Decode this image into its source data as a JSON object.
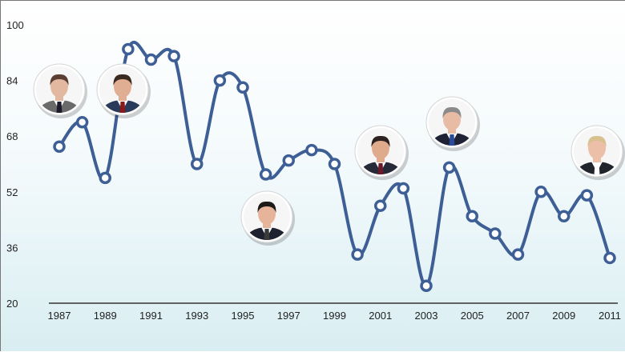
{
  "chart_data": {
    "type": "line",
    "title": "",
    "xlabel": "",
    "ylabel": "",
    "x": [
      1987,
      1988,
      1989,
      1990,
      1991,
      1992,
      1993,
      1994,
      1995,
      1996,
      1997,
      1998,
      1999,
      2000,
      2001,
      2002,
      2003,
      2004,
      2005,
      2006,
      2007,
      2008,
      2009,
      2010,
      2011
    ],
    "series": [
      {
        "values": [
          65,
          72,
          56,
          93,
          90,
          91,
          60,
          84,
          82,
          57,
          61,
          64,
          60,
          34,
          48,
          53,
          25,
          59,
          45,
          40,
          34,
          52,
          45,
          51,
          33
        ]
      }
    ],
    "xticks": [
      "1987",
      "1989",
      "1991",
      "1993",
      "1995",
      "1997",
      "1999",
      "2001",
      "2003",
      "2005",
      "2007",
      "2009",
      "2011"
    ],
    "yticks": [
      "20",
      "36",
      "52",
      "68",
      "84",
      "100"
    ],
    "ylim": [
      20,
      100
    ],
    "grid": false,
    "line_color": "#3d5f95",
    "portraits": [
      {
        "name": "portrait-1",
        "year": 1987
      },
      {
        "name": "portrait-2",
        "year": 1989
      },
      {
        "name": "portrait-3",
        "year": 1996
      },
      {
        "name": "portrait-4",
        "year": 2001
      },
      {
        "name": "portrait-5",
        "year": 2004
      },
      {
        "name": "portrait-6",
        "year": 2011
      }
    ]
  }
}
